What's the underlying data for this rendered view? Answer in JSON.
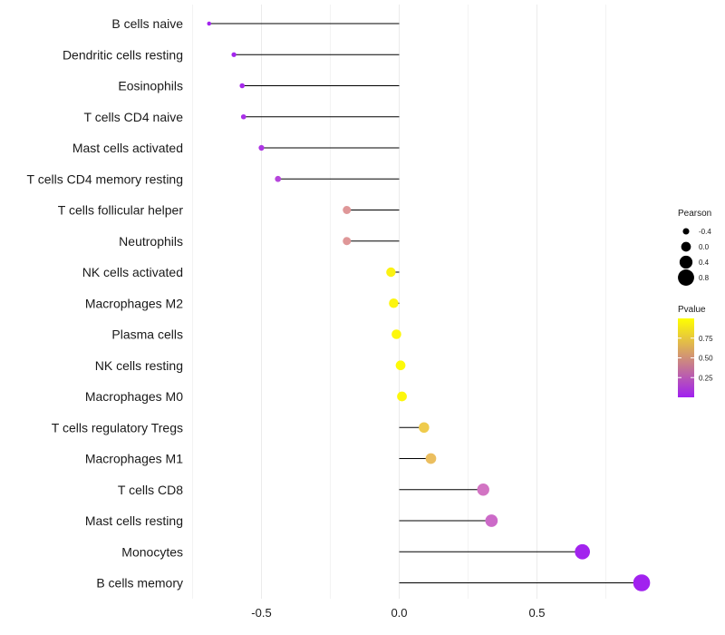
{
  "chart_data": {
    "type": "lollipop",
    "categories": [
      "B cells naive",
      "Dendritic cells resting",
      "Eosinophils",
      "T cells CD4 naive",
      "Mast cells activated",
      "T cells CD4 memory resting",
      "T cells follicular helper",
      "Neutrophils",
      "NK cells activated",
      "Macrophages M2",
      "Plasma cells",
      "NK cells resting",
      "Macrophages M0",
      "T cells regulatory  Tregs ",
      "Macrophages M1",
      "T cells CD8",
      "Mast cells resting",
      "Monocytes",
      "B cells memory"
    ],
    "values": [
      -0.69,
      -0.6,
      -0.57,
      -0.565,
      -0.5,
      -0.44,
      -0.19,
      -0.19,
      -0.03,
      -0.02,
      -0.01,
      0.005,
      0.01,
      0.09,
      0.115,
      0.305,
      0.335,
      0.665,
      0.88
    ],
    "pvalues": [
      0.02,
      0.03,
      0.05,
      0.08,
      0.12,
      0.2,
      0.6,
      0.6,
      0.95,
      0.96,
      0.97,
      0.98,
      0.97,
      0.8,
      0.75,
      0.45,
      0.4,
      0.02,
      0.01
    ],
    "xlim": [
      -0.75,
      0.9
    ],
    "xticks": [
      -0.5,
      0.0,
      0.5
    ],
    "xtick_labels": [
      "-0.5",
      "0.0",
      "0.5"
    ],
    "grid": true,
    "legend_size": {
      "title": "Pearson",
      "entries": [
        {
          "label": "-0.4",
          "value": -0.4
        },
        {
          "label": "0.0",
          "value": 0.0
        },
        {
          "label": "0.4",
          "value": 0.4
        },
        {
          "label": "0.8",
          "value": 0.8
        }
      ]
    },
    "legend_color": {
      "title": "Pvalue",
      "tick_labels": [
        "0.75",
        "0.50",
        "0.25"
      ],
      "tick_values": [
        0.75,
        0.5,
        0.25
      ],
      "range": [
        0.0,
        1.0
      ],
      "low_color": "#a020f0",
      "high_color": "#ffff00"
    },
    "colors": {
      "stem": "#000000",
      "grid": "#ebebeb"
    }
  }
}
